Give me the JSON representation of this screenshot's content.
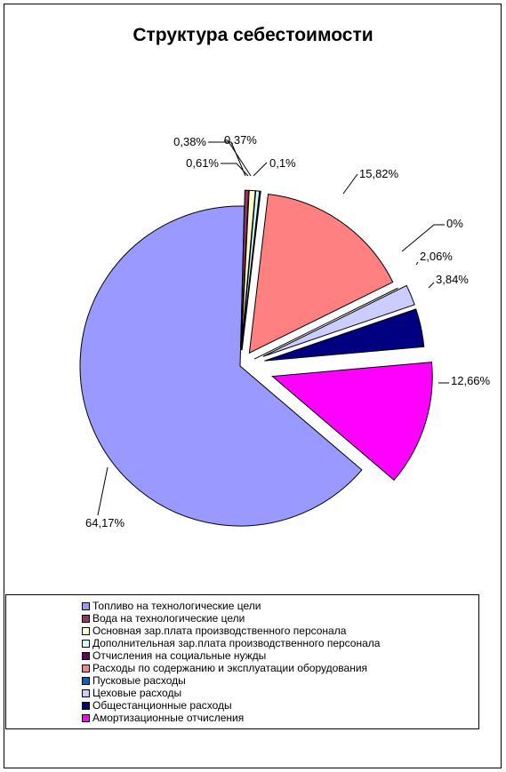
{
  "chart_data": {
    "type": "pie",
    "title": "Структура себестоимости",
    "legend_position": "bottom",
    "slices": [
      {
        "name": "Топливо на технологические цели",
        "value": 64.17,
        "label": "64,17%",
        "color": "#9999ff"
      },
      {
        "name": "Вода на технологические цели",
        "value": 0.38,
        "label": "0,38%",
        "color": "#993366"
      },
      {
        "name": "Основная зар.плата производственного персонала",
        "value": 0.61,
        "label": "0,61%",
        "color": "#ffffcc"
      },
      {
        "name": "Дополнительная зар.плата производственного персонала",
        "value": 0.37,
        "label": "0,37%",
        "color": "#ccffff"
      },
      {
        "name": "Отчисления на социальные нужды",
        "value": 0.1,
        "label": "0,1%",
        "color": "#660066"
      },
      {
        "name": "Расходы по содержанию и эксплуатации оборудования",
        "value": 15.82,
        "label": "15,82%",
        "color": "#ff8080"
      },
      {
        "name": "Пусковые расходы",
        "value": 0,
        "label": "0%",
        "color": "#0066cc"
      },
      {
        "name": "Цеховые расходы",
        "value": 2.06,
        "label": "2,06%",
        "color": "#ccccff"
      },
      {
        "name": "Общестанционные расходы",
        "value": 3.84,
        "label": "3,84%",
        "color": "#000080"
      },
      {
        "name": "Амортизационные отчисления",
        "value": 12.66,
        "label": "12,66%",
        "color": "#ff00ff"
      }
    ]
  }
}
